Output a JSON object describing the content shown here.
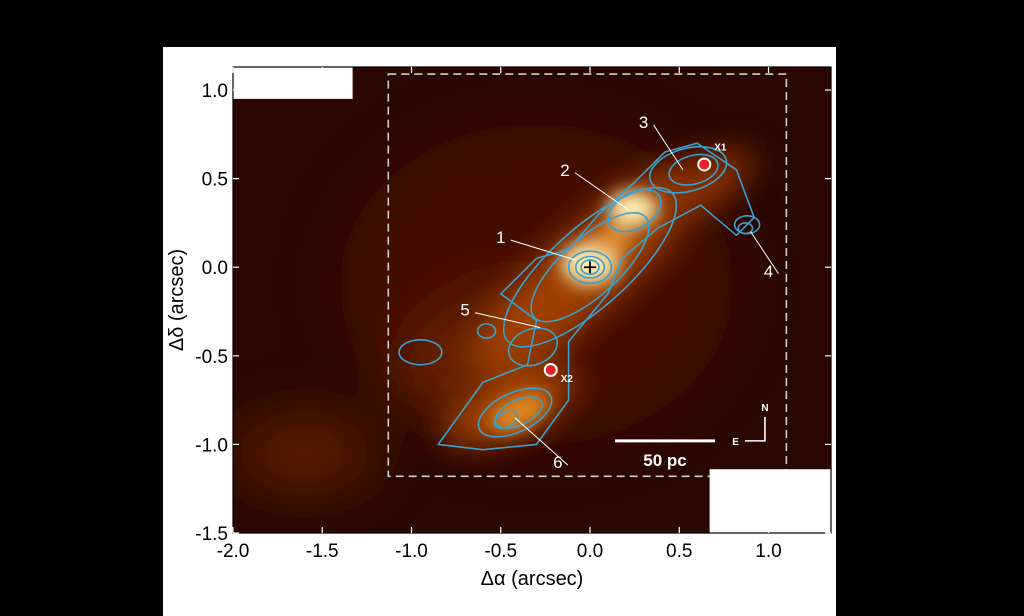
{
  "chart_data": {
    "type": "heatmap",
    "xlabel": "Δα (arcsec)",
    "ylabel": "Δδ (arcsec)",
    "xlim": [
      -2.0,
      1.35
    ],
    "ylim": [
      -1.5,
      1.13
    ],
    "x_ticks": [
      "-2.0",
      "-1.5",
      "-1.0",
      "-0.5",
      "0.0",
      "0.5",
      "1.0"
    ],
    "x_tick_values": [
      -2.0,
      -1.5,
      -1.0,
      -0.5,
      0.0,
      0.5,
      1.0
    ],
    "y_ticks": [
      "1.0",
      "0.5",
      "0.0",
      "-0.5",
      "-1.0",
      "-1.5"
    ],
    "y_tick_values": [
      1.0,
      0.5,
      0.0,
      -0.5,
      -1.0,
      -1.5
    ],
    "colormap": [
      "#2a0800",
      "#5a1a00",
      "#a04000",
      "#e08a20",
      "#fff0b0"
    ],
    "contour_color": "#3aa0d0",
    "center_marker": {
      "x": 0.0,
      "y": 0.0
    },
    "dashed_box": {
      "x0": -1.13,
      "x1": 1.1,
      "y0": -1.18,
      "y1": 1.09
    },
    "regions": [
      {
        "label": "1",
        "text_x": -0.5,
        "text_y": 0.17,
        "target_x": -0.08,
        "target_y": 0.04
      },
      {
        "label": "2",
        "text_x": -0.14,
        "text_y": 0.55,
        "target_x": 0.22,
        "target_y": 0.32
      },
      {
        "label": "3",
        "text_x": 0.3,
        "text_y": 0.82,
        "target_x": 0.52,
        "target_y": 0.55
      },
      {
        "label": "4",
        "text_x": 1.0,
        "text_y": -0.02,
        "target_x": 0.9,
        "target_y": 0.2
      },
      {
        "label": "5",
        "text_x": -0.7,
        "text_y": -0.24,
        "target_x": -0.28,
        "target_y": -0.34
      },
      {
        "label": "6",
        "text_x": -0.18,
        "text_y": -1.1,
        "target_x": -0.42,
        "target_y": -0.85
      }
    ],
    "sources": [
      {
        "label": "X1",
        "x": 0.64,
        "y": 0.58
      },
      {
        "label": "X2",
        "x": -0.22,
        "y": -0.58
      }
    ],
    "scale_bar": {
      "label": "50 pc",
      "x0": 0.14,
      "x1": 0.7,
      "y": -0.98
    },
    "compass": {
      "north": "N",
      "east": "E"
    }
  }
}
